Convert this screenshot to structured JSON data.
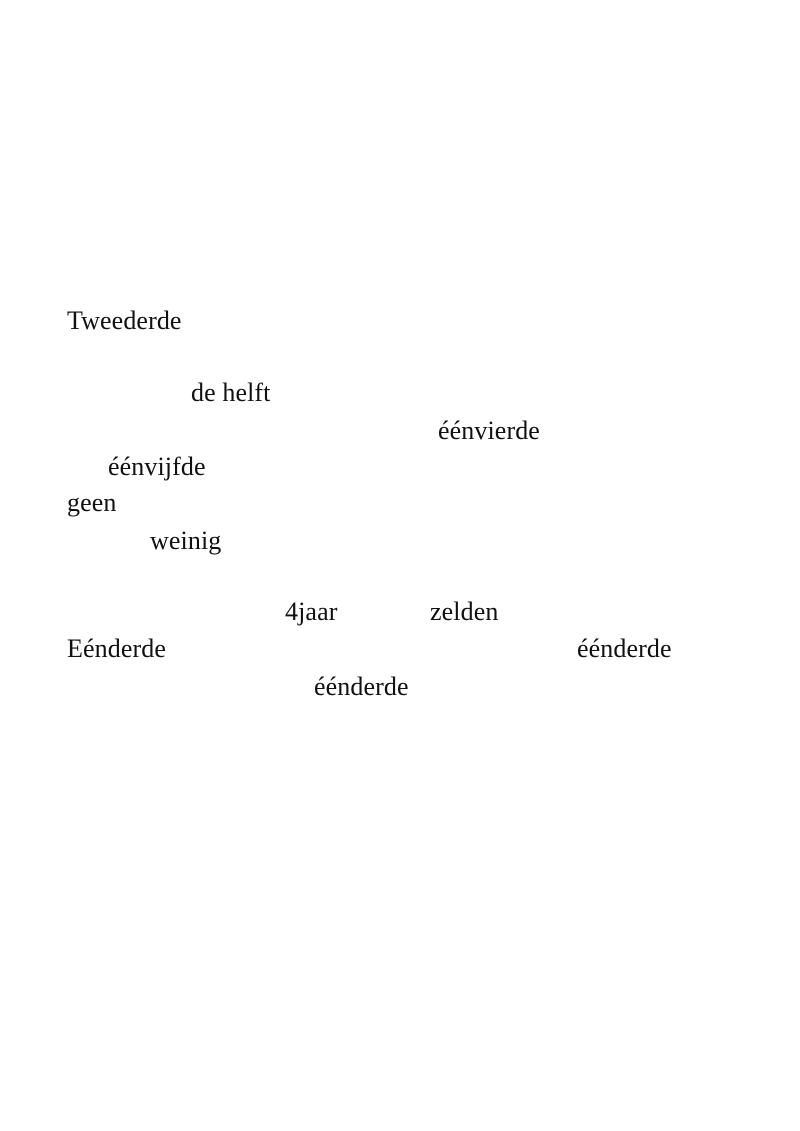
{
  "words": [
    "Tweederde",
    "de helft",
    "éénvierde",
    "éénvijfde",
    "geen",
    "weinig",
    "4jaar",
    "zelden",
    "Eénderde",
    "éénderde",
    "éénderde"
  ]
}
